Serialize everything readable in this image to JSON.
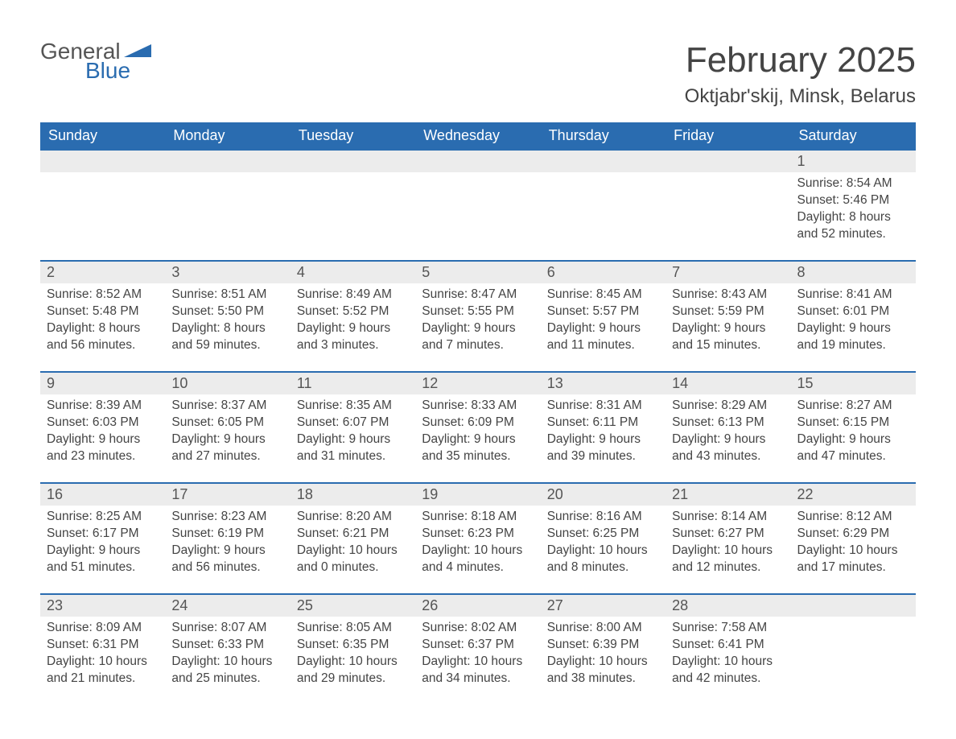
{
  "logo": {
    "word1": "General",
    "word2": "Blue"
  },
  "title": "February 2025",
  "location": "Oktjabr'skij, Minsk, Belarus",
  "colors": {
    "header_bg": "#2a6cb0",
    "header_text": "#ffffff",
    "daynum_bg": "#ececec",
    "row_border": "#2a6cb0",
    "body_text": "#444444",
    "page_bg": "#ffffff"
  },
  "typography": {
    "title_fontsize": 44,
    "location_fontsize": 24,
    "weekday_fontsize": 18,
    "daynum_fontsize": 18,
    "content_fontsize": 15.5,
    "font_family": "Arial"
  },
  "layout": {
    "columns": 7,
    "rows": 5,
    "start_day_index": 6
  },
  "weekdays": [
    "Sunday",
    "Monday",
    "Tuesday",
    "Wednesday",
    "Thursday",
    "Friday",
    "Saturday"
  ],
  "labels": {
    "sunrise": "Sunrise:",
    "sunset": "Sunset:",
    "daylight": "Daylight:"
  },
  "days": [
    {
      "n": 1,
      "sunrise": "8:54 AM",
      "sunset": "5:46 PM",
      "daylight": "8 hours and 52 minutes."
    },
    {
      "n": 2,
      "sunrise": "8:52 AM",
      "sunset": "5:48 PM",
      "daylight": "8 hours and 56 minutes."
    },
    {
      "n": 3,
      "sunrise": "8:51 AM",
      "sunset": "5:50 PM",
      "daylight": "8 hours and 59 minutes."
    },
    {
      "n": 4,
      "sunrise": "8:49 AM",
      "sunset": "5:52 PM",
      "daylight": "9 hours and 3 minutes."
    },
    {
      "n": 5,
      "sunrise": "8:47 AM",
      "sunset": "5:55 PM",
      "daylight": "9 hours and 7 minutes."
    },
    {
      "n": 6,
      "sunrise": "8:45 AM",
      "sunset": "5:57 PM",
      "daylight": "9 hours and 11 minutes."
    },
    {
      "n": 7,
      "sunrise": "8:43 AM",
      "sunset": "5:59 PM",
      "daylight": "9 hours and 15 minutes."
    },
    {
      "n": 8,
      "sunrise": "8:41 AM",
      "sunset": "6:01 PM",
      "daylight": "9 hours and 19 minutes."
    },
    {
      "n": 9,
      "sunrise": "8:39 AM",
      "sunset": "6:03 PM",
      "daylight": "9 hours and 23 minutes."
    },
    {
      "n": 10,
      "sunrise": "8:37 AM",
      "sunset": "6:05 PM",
      "daylight": "9 hours and 27 minutes."
    },
    {
      "n": 11,
      "sunrise": "8:35 AM",
      "sunset": "6:07 PM",
      "daylight": "9 hours and 31 minutes."
    },
    {
      "n": 12,
      "sunrise": "8:33 AM",
      "sunset": "6:09 PM",
      "daylight": "9 hours and 35 minutes."
    },
    {
      "n": 13,
      "sunrise": "8:31 AM",
      "sunset": "6:11 PM",
      "daylight": "9 hours and 39 minutes."
    },
    {
      "n": 14,
      "sunrise": "8:29 AM",
      "sunset": "6:13 PM",
      "daylight": "9 hours and 43 minutes."
    },
    {
      "n": 15,
      "sunrise": "8:27 AM",
      "sunset": "6:15 PM",
      "daylight": "9 hours and 47 minutes."
    },
    {
      "n": 16,
      "sunrise": "8:25 AM",
      "sunset": "6:17 PM",
      "daylight": "9 hours and 51 minutes."
    },
    {
      "n": 17,
      "sunrise": "8:23 AM",
      "sunset": "6:19 PM",
      "daylight": "9 hours and 56 minutes."
    },
    {
      "n": 18,
      "sunrise": "8:20 AM",
      "sunset": "6:21 PM",
      "daylight": "10 hours and 0 minutes."
    },
    {
      "n": 19,
      "sunrise": "8:18 AM",
      "sunset": "6:23 PM",
      "daylight": "10 hours and 4 minutes."
    },
    {
      "n": 20,
      "sunrise": "8:16 AM",
      "sunset": "6:25 PM",
      "daylight": "10 hours and 8 minutes."
    },
    {
      "n": 21,
      "sunrise": "8:14 AM",
      "sunset": "6:27 PM",
      "daylight": "10 hours and 12 minutes."
    },
    {
      "n": 22,
      "sunrise": "8:12 AM",
      "sunset": "6:29 PM",
      "daylight": "10 hours and 17 minutes."
    },
    {
      "n": 23,
      "sunrise": "8:09 AM",
      "sunset": "6:31 PM",
      "daylight": "10 hours and 21 minutes."
    },
    {
      "n": 24,
      "sunrise": "8:07 AM",
      "sunset": "6:33 PM",
      "daylight": "10 hours and 25 minutes."
    },
    {
      "n": 25,
      "sunrise": "8:05 AM",
      "sunset": "6:35 PM",
      "daylight": "10 hours and 29 minutes."
    },
    {
      "n": 26,
      "sunrise": "8:02 AM",
      "sunset": "6:37 PM",
      "daylight": "10 hours and 34 minutes."
    },
    {
      "n": 27,
      "sunrise": "8:00 AM",
      "sunset": "6:39 PM",
      "daylight": "10 hours and 38 minutes."
    },
    {
      "n": 28,
      "sunrise": "7:58 AM",
      "sunset": "6:41 PM",
      "daylight": "10 hours and 42 minutes."
    }
  ]
}
